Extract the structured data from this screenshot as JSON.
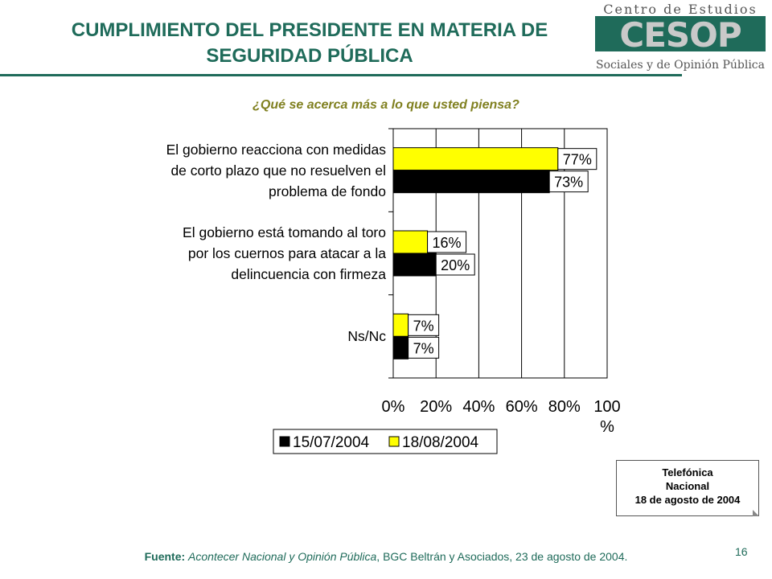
{
  "header": {
    "title_line1": "CUMPLIMIENTO DEL PRESIDENTE EN MATERIA DE",
    "title_line2": "SEGURIDAD PÚBLICA",
    "logo_line1": "Centro de Estudios",
    "logo_mark": "CESOP",
    "logo_line2": "Sociales y de Opinión Pública"
  },
  "question": "¿Qué se acerca más a lo que usted piensa?",
  "chart_data": {
    "type": "bar",
    "orientation": "horizontal",
    "categories": [
      [
        "El gobierno reacciona con medidas",
        "de corto plazo que no resuelven el",
        "problema de fondo"
      ],
      [
        "El gobierno está tomando al toro",
        "por los cuernos para atacar a la",
        "delincuencia con firmeza"
      ],
      [
        "Ns/Nc"
      ]
    ],
    "series": [
      {
        "name": "18/08/2004",
        "color": "#ffff00",
        "values": [
          77,
          16,
          7
        ],
        "labels": [
          "77%",
          "16%",
          "7%"
        ]
      },
      {
        "name": "15/07/2004",
        "color": "#000000",
        "values": [
          73,
          20,
          7
        ],
        "labels": [
          "73%",
          "20%",
          "7%"
        ]
      }
    ],
    "xlim": [
      0,
      100
    ],
    "xticks": [
      "0%",
      "20%",
      "40%",
      "60%",
      "80%",
      "100"
    ],
    "xunit": "%",
    "grid": true,
    "legend": {
      "placement": "bottom",
      "entries": [
        {
          "name": "15/07/2004",
          "color": "#000000"
        },
        {
          "name": "18/08/2004",
          "color": "#ffff00"
        }
      ]
    }
  },
  "note": {
    "line1": "Telefónica",
    "line2": "Nacional",
    "line3": "18 de agosto de 2004"
  },
  "source": {
    "prefix": "Fuente:",
    "italic": "Acontecer Nacional y Opinión Pública",
    "rest": ", BGC Beltrán y Asociados, 23 de agosto de 2004."
  },
  "page_number": "16"
}
